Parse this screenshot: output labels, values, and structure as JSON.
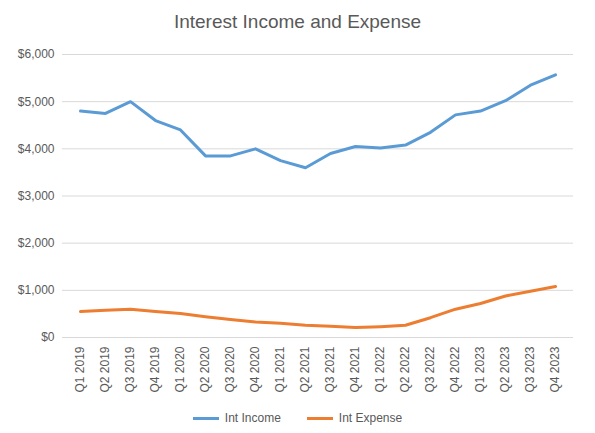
{
  "chart_data": {
    "type": "line",
    "title": "Interest Income and Expense",
    "categories": [
      "Q1 2019",
      "Q2 2019",
      "Q3 2019",
      "Q4 2019",
      "Q1 2020",
      "Q2 2020",
      "Q3 2020",
      "Q4 2020",
      "Q1 2021",
      "Q2 2021",
      "Q3 2021",
      "Q4 2021",
      "Q1 2022",
      "Q2 2022",
      "Q3 2022",
      "Q4 2022",
      "Q1 2023",
      "Q2 2023",
      "Q3 2023",
      "Q4 2023"
    ],
    "series": [
      {
        "name": "Int Income",
        "color": "#5b9bd5",
        "values": [
          4800,
          4750,
          5000,
          4600,
          4400,
          3850,
          3850,
          4000,
          3750,
          3600,
          3900,
          4050,
          4020,
          4080,
          4350,
          4720,
          4800,
          5020,
          5350,
          5570
        ]
      },
      {
        "name": "Int Expense",
        "color": "#ed7d31",
        "values": [
          550,
          580,
          600,
          550,
          510,
          440,
          380,
          330,
          300,
          260,
          240,
          210,
          230,
          260,
          420,
          600,
          720,
          880,
          980,
          1080
        ]
      }
    ],
    "ylim": [
      0,
      6000
    ],
    "yticks": [
      {
        "value": 0,
        "label": "$0"
      },
      {
        "value": 1000,
        "label": "$1,000"
      },
      {
        "value": 2000,
        "label": "$2,000"
      },
      {
        "value": 3000,
        "label": "$3,000"
      },
      {
        "value": 4000,
        "label": "$4,000"
      },
      {
        "value": 5000,
        "label": "$5,000"
      },
      {
        "value": 6000,
        "label": "$6,000"
      }
    ],
    "grid": true,
    "legend": "bottom"
  }
}
